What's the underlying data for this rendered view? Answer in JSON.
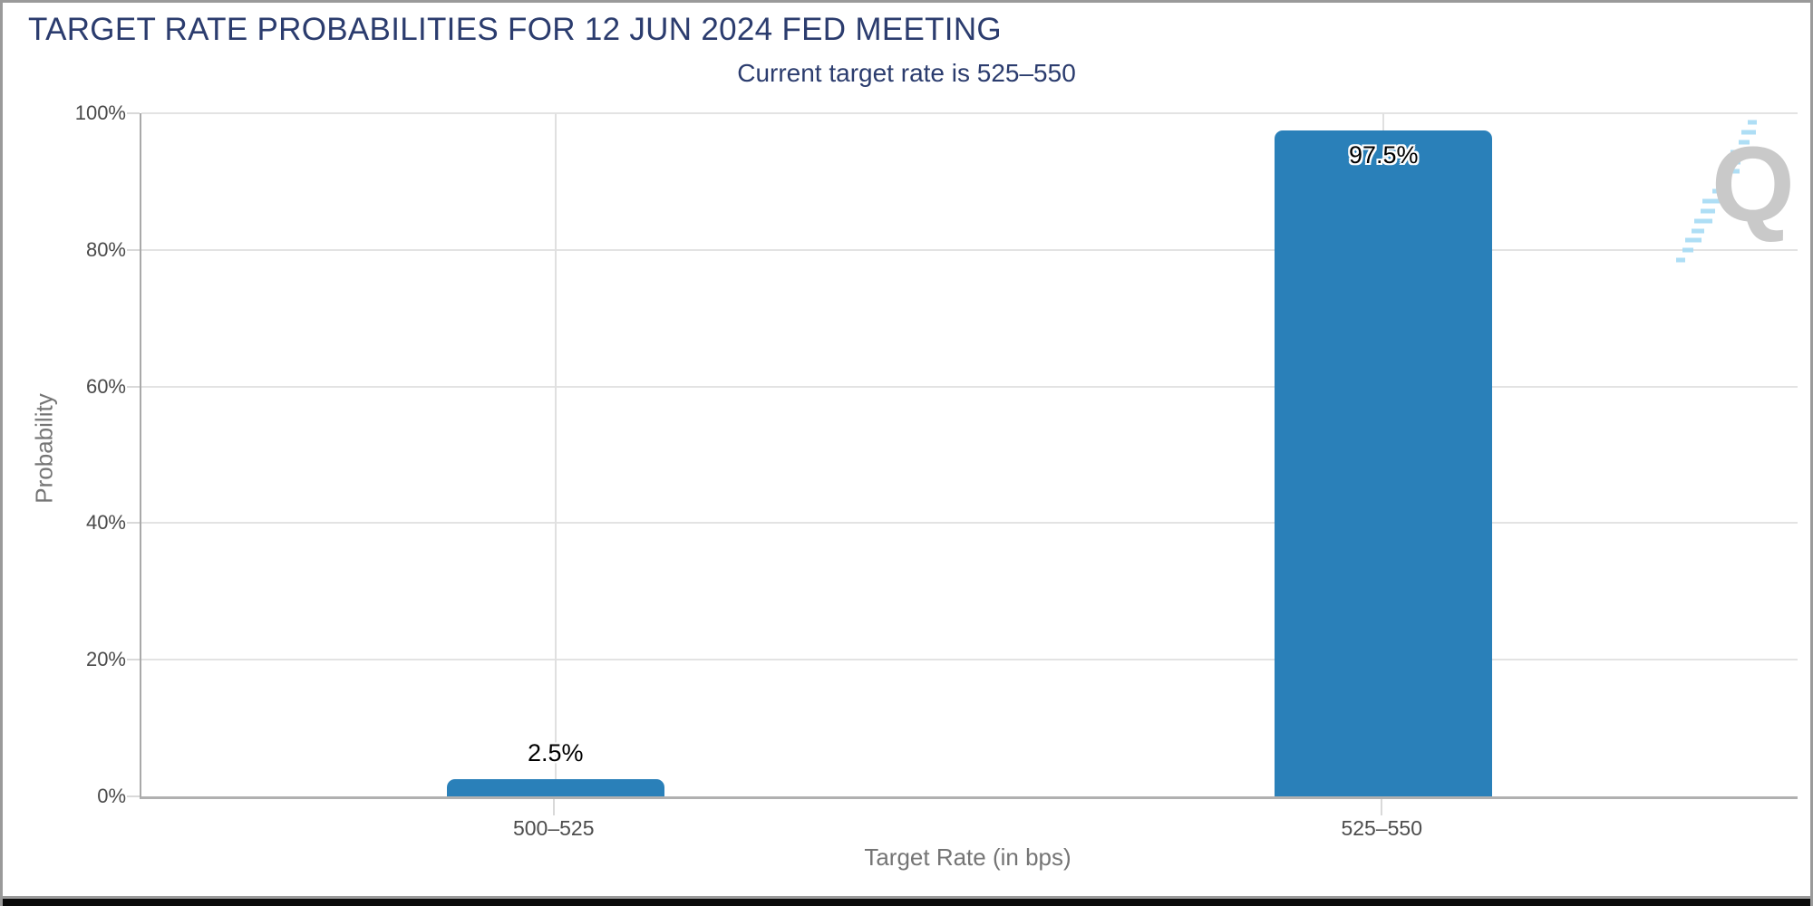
{
  "header": {
    "title": "TARGET RATE PROBABILITIES FOR 12 JUN 2024 FED MEETING",
    "subtitle": "Current target rate is 525–550"
  },
  "watermark": {
    "letter": "Q"
  },
  "colors": {
    "title_navy": "#2b3c6e",
    "bar_blue": "#2a80b9",
    "grid_gray": "#e3e3e3",
    "axis_gray": "#a9a9a9",
    "watermark_gray": "#c9c9c9",
    "watermark_blue": "#a6dbf4"
  },
  "chart_data": {
    "type": "bar",
    "title": "TARGET RATE PROBABILITIES FOR 12 JUN 2024 FED MEETING",
    "subtitle": "Current target rate is 525–550",
    "categories": [
      "500–525",
      "525–550"
    ],
    "values": [
      2.5,
      97.5
    ],
    "value_labels": [
      "2.5%",
      "97.5%"
    ],
    "xlabel": "Target Rate (in bps)",
    "ylabel": "Probability",
    "ylim": [
      0,
      100
    ],
    "yticks": [
      {
        "value": 0,
        "label": "0%"
      },
      {
        "value": 20,
        "label": "20%"
      },
      {
        "value": 40,
        "label": "40%"
      },
      {
        "value": 60,
        "label": "60%"
      },
      {
        "value": 80,
        "label": "80%"
      },
      {
        "value": 100,
        "label": "100%"
      }
    ],
    "grid": true,
    "legend": false,
    "bar_color": "#2a80b9"
  }
}
